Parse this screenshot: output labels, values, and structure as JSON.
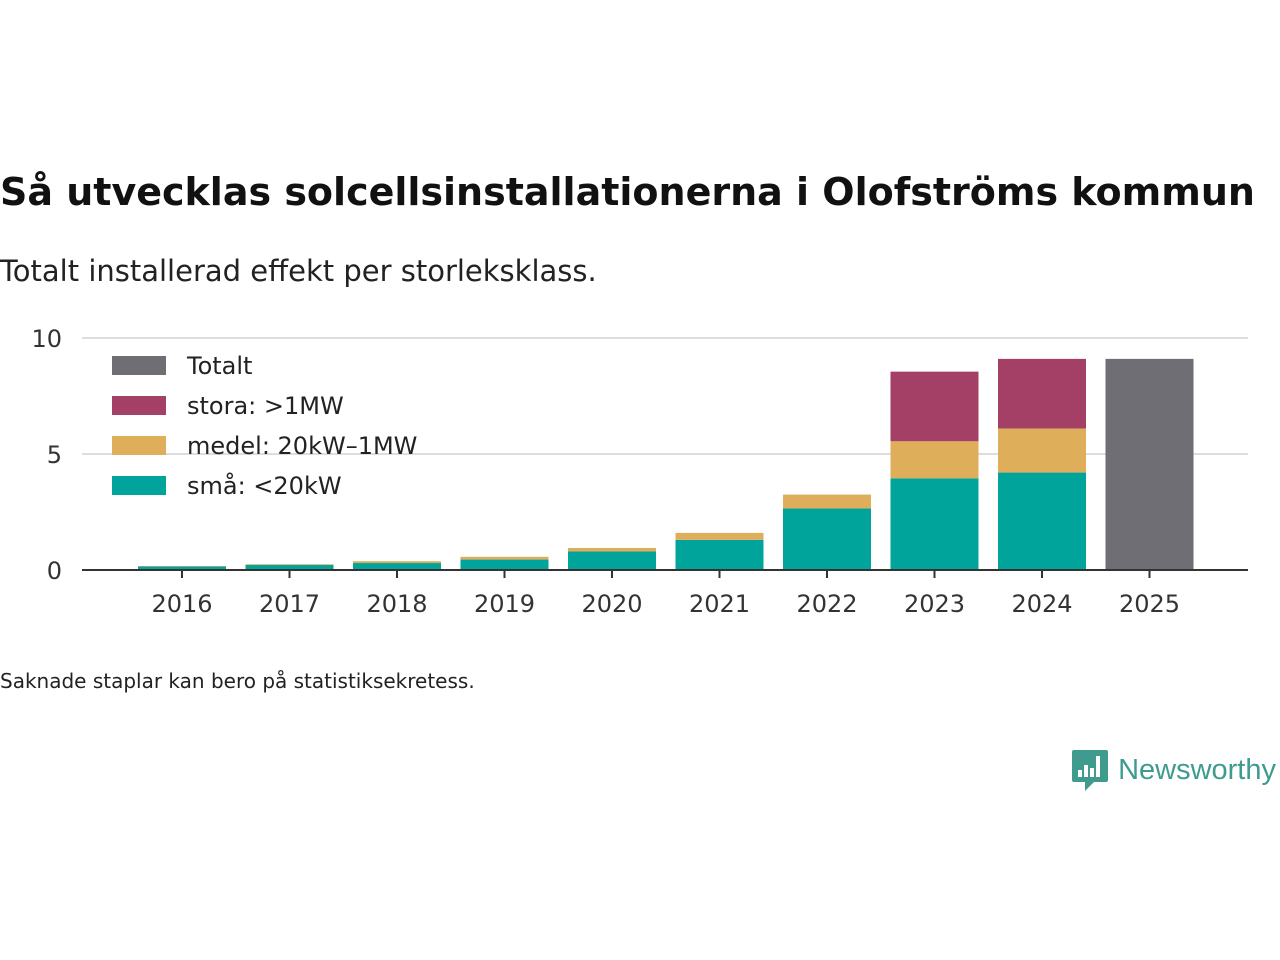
{
  "header": {
    "title": "Så utvecklas solcellsinstallationerna i Olofströms kommun",
    "subtitle": "Totalt installerad effekt per storleksklass."
  },
  "footer": {
    "note": "Saknade staplar kan bero på statistiksekretess.",
    "brand": "Newsworthy"
  },
  "colors": {
    "total": "#6e6e74",
    "large": "#a43f66",
    "medium": "#dfae5b",
    "small": "#00a49a",
    "brand": "#3f9b8e"
  },
  "chart_data": {
    "type": "bar",
    "stacked": true,
    "title": "Så utvecklas solcellsinstallationerna i Olofströms kommun",
    "subtitle": "Totalt installerad effekt per storleksklass.",
    "xlabel": "",
    "ylabel": "",
    "ylim": [
      0,
      10
    ],
    "yticks": [
      0,
      5,
      10
    ],
    "grid": true,
    "legend_position": "top-left",
    "categories": [
      "2016",
      "2017",
      "2018",
      "2019",
      "2020",
      "2021",
      "2022",
      "2023",
      "2024",
      "2025"
    ],
    "series": [
      {
        "name": "små: <20kW",
        "key": "small",
        "values": [
          0.15,
          0.22,
          0.3,
          0.45,
          0.8,
          1.3,
          2.65,
          3.95,
          4.2,
          null
        ]
      },
      {
        "name": "medel: 20kW–1MW",
        "key": "medium",
        "values": [
          0.02,
          0.03,
          0.08,
          0.12,
          0.15,
          0.3,
          0.6,
          1.6,
          1.9,
          null
        ]
      },
      {
        "name": "stora: >1MW",
        "key": "large",
        "values": [
          0,
          0,
          0,
          0,
          0,
          0,
          0,
          3.0,
          3.0,
          null
        ]
      },
      {
        "name": "Totalt",
        "key": "total",
        "values": [
          null,
          null,
          null,
          null,
          null,
          null,
          null,
          null,
          null,
          9.1
        ]
      }
    ],
    "legend_order": [
      "total",
      "large",
      "medium",
      "small"
    ]
  }
}
